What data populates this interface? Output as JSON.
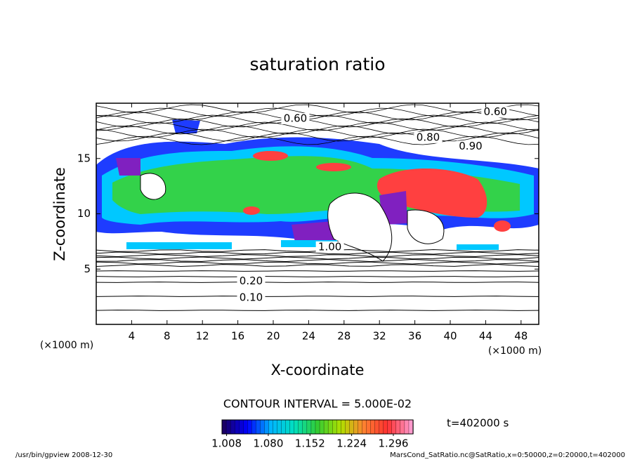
{
  "chart_data": {
    "type": "contour",
    "title": "saturation ratio",
    "x_label": "X-coordinate",
    "y_label": "Z-coordinate",
    "x_unit": "(×1000 m)",
    "y_unit": "(×1000 m)",
    "xlim": [
      0,
      50
    ],
    "ylim": [
      0,
      20
    ],
    "xticks": [
      4,
      8,
      12,
      16,
      20,
      24,
      28,
      32,
      36,
      40,
      44,
      48
    ],
    "yticks": [
      5,
      10,
      15
    ],
    "contour_interval": "CONTOUR INTERVAL = 5.000E-02",
    "contour_labels": [
      {
        "value": 0.1,
        "label": "0.10",
        "x": 17.5,
        "z": 2.4
      },
      {
        "value": 0.2,
        "label": "0.20",
        "x": 17.5,
        "z": 3.9
      },
      {
        "value": 0.6,
        "label": "0.60",
        "x": 45.1,
        "z": 19.2
      },
      {
        "value": 0.6,
        "label": "0.60",
        "x": 22.5,
        "z": 18.6
      },
      {
        "value": 0.8,
        "label": "0.80",
        "x": 37.5,
        "z": 16.9
      },
      {
        "value": 0.9,
        "label": "0.90",
        "x": 42.3,
        "z": 16.1
      },
      {
        "value": 1,
        "label": "1.00",
        "x": 26.4,
        "z": 7.0
      }
    ],
    "colorbar": {
      "clim": [
        1.0,
        1.33
      ],
      "ticks": [
        {
          "value": 1.008,
          "label": "1.008"
        },
        {
          "value": 1.08,
          "label": "1.080"
        },
        {
          "value": 1.152,
          "label": "1.152"
        },
        {
          "value": 1.224,
          "label": "1.224"
        },
        {
          "value": 1.296,
          "label": "1.296"
        }
      ],
      "colormap": [
        "#1a0066",
        "#0000ff",
        "#00b4ff",
        "#00e0c0",
        "#33cc33",
        "#b0e000",
        "#ff8030",
        "#ff3030",
        "#ff99cc"
      ]
    },
    "time": "t=402000 s",
    "footer_left": "/usr/bin/gpview  2008-12-30",
    "footer_right": "MarsCond_SatRatio.nc@SatRatio,x=0:50000,z=0:20000,t=402000"
  }
}
